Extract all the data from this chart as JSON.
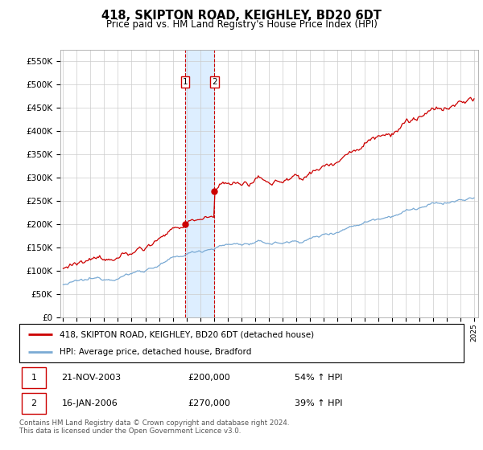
{
  "title": "418, SKIPTON ROAD, KEIGHLEY, BD20 6DT",
  "subtitle": "Price paid vs. HM Land Registry's House Price Index (HPI)",
  "ylim": [
    0,
    575000
  ],
  "yticks": [
    0,
    50000,
    100000,
    150000,
    200000,
    250000,
    300000,
    350000,
    400000,
    450000,
    500000,
    550000
  ],
  "ytick_labels": [
    "£0",
    "£50K",
    "£100K",
    "£150K",
    "£200K",
    "£250K",
    "£300K",
    "£350K",
    "£400K",
    "£450K",
    "£500K",
    "£550K"
  ],
  "hpi_color": "#7aaad4",
  "price_color": "#cc0000",
  "shade_color": "#ddeeff",
  "transaction1_date": "21-NOV-2003",
  "transaction1_price": 200000,
  "transaction1_hpi_pct": "54%",
  "transaction2_date": "16-JAN-2006",
  "transaction2_price": 270000,
  "transaction2_hpi_pct": "39%",
  "legend_label1": "418, SKIPTON ROAD, KEIGHLEY, BD20 6DT (detached house)",
  "legend_label2": "HPI: Average price, detached house, Bradford",
  "footer": "Contains HM Land Registry data © Crown copyright and database right 2024.\nThis data is licensed under the Open Government Licence v3.0.",
  "transaction1_x": 2003.9,
  "transaction2_x": 2006.05
}
